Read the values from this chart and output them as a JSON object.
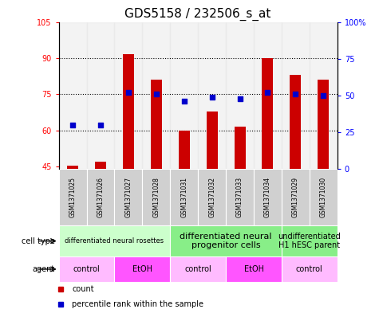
{
  "title": "GDS5158 / 232506_s_at",
  "samples": [
    "GSM1371025",
    "GSM1371026",
    "GSM1371027",
    "GSM1371028",
    "GSM1371031",
    "GSM1371032",
    "GSM1371033",
    "GSM1371034",
    "GSM1371029",
    "GSM1371030"
  ],
  "red_values": [
    45.5,
    47.0,
    91.5,
    81.0,
    60.0,
    68.0,
    61.5,
    90.0,
    83.0,
    81.0
  ],
  "blue_pct": [
    30,
    30,
    52,
    51,
    46,
    49,
    48,
    52,
    51,
    50
  ],
  "ylim_left": [
    44,
    105
  ],
  "ylim_right": [
    0,
    100
  ],
  "yticks_left": [
    45,
    60,
    75,
    90,
    105
  ],
  "yticks_right": [
    0,
    25,
    50,
    75,
    100
  ],
  "bar_color": "#cc0000",
  "dot_color": "#0000cc",
  "bar_bottom": 44,
  "cell_type_groups": [
    {
      "label": "differentiated neural rosettes",
      "start": 0,
      "end": 4,
      "color": "#ccffcc",
      "fontsize": 6
    },
    {
      "label": "differentiated neural\nprogenitor cells",
      "start": 4,
      "end": 8,
      "color": "#88ee88",
      "fontsize": 8
    },
    {
      "label": "undifferentiated\nH1 hESC parent",
      "start": 8,
      "end": 10,
      "color": "#88ee88",
      "fontsize": 7
    }
  ],
  "agent_groups": [
    {
      "label": "control",
      "start": 0,
      "end": 2,
      "color": "#ffbbff"
    },
    {
      "label": "EtOH",
      "start": 2,
      "end": 4,
      "color": "#ff55ff"
    },
    {
      "label": "control",
      "start": 4,
      "end": 6,
      "color": "#ffbbff"
    },
    {
      "label": "EtOH",
      "start": 6,
      "end": 8,
      "color": "#ff55ff"
    },
    {
      "label": "control",
      "start": 8,
      "end": 10,
      "color": "#ffbbff"
    }
  ],
  "sample_box_color": "#d0d0d0",
  "legend_count_color": "#cc0000",
  "legend_pct_color": "#0000cc",
  "title_fontsize": 11,
  "tick_fontsize": 7,
  "dotted_lines": [
    60,
    75,
    90
  ]
}
